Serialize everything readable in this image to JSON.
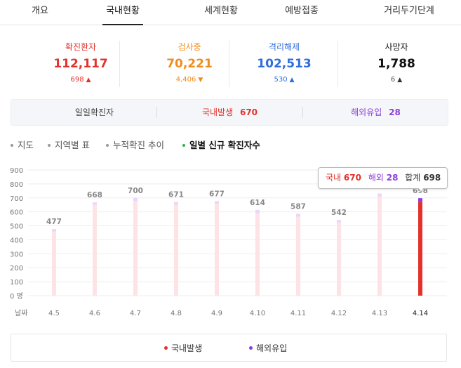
{
  "tabs": [
    "개요",
    "국내현황",
    "세계현황",
    "예방접종",
    "거리두기단계"
  ],
  "active_tab": 1,
  "stats": [
    {
      "label": "확진환자",
      "value": "112,117",
      "change": "698",
      "dir": "up",
      "color": "#e3322b"
    },
    {
      "label": "검사중",
      "value": "70,221",
      "change": "4,406",
      "dir": "down",
      "color": "#f08c1e"
    },
    {
      "label": "격리해제",
      "value": "102,513",
      "change": "530",
      "dir": "up",
      "color": "#2f6ddb"
    },
    {
      "label": "사망자",
      "value": "1,788",
      "change": "6",
      "dir": "up",
      "color": "#111111"
    }
  ],
  "summary": {
    "daily_label": "일일확진자",
    "domestic_label": "국내발생",
    "domestic_value": "670",
    "overseas_label": "해외유입",
    "overseas_value": "28"
  },
  "subtabs": [
    "지도",
    "지역별 표",
    "누적확진 추이",
    "일별 신규 확진자수"
  ],
  "tooltip": {
    "domestic_label": "국내",
    "domestic_value": "670",
    "overseas_label": "해외",
    "overseas_value": "28",
    "total_label": "합계",
    "total_value": "698"
  },
  "colors": {
    "domestic": "#e3322b",
    "overseas": "#8b3fd9",
    "bar_light": "#fde3e6",
    "bar_overseas_light": "#ead6fb"
  },
  "chart_data": {
    "type": "bar",
    "categories": [
      "4.5",
      "4.6",
      "4.7",
      "4.8",
      "4.9",
      "4.10",
      "4.11",
      "4.12",
      "4.13",
      "4.14"
    ],
    "series": [
      {
        "name": "국내발생",
        "values": [
          460,
          650,
          677,
          653,
          657,
          590,
          566,
          525,
          709,
          670
        ]
      },
      {
        "name": "해외유입",
        "values": [
          17,
          18,
          23,
          18,
          20,
          24,
          21,
          17,
          22,
          28
        ]
      }
    ],
    "totals": [
      "477",
      "668",
      "700",
      "671",
      "677",
      "614",
      "587",
      "542",
      "731",
      "698"
    ],
    "yticks": [
      "900",
      "800",
      "700",
      "600",
      "500",
      "400",
      "300",
      "200",
      "100",
      "0 명"
    ],
    "ylim": [
      0,
      900
    ],
    "xlabel": "날짜",
    "highlight_index": 9
  },
  "legend": [
    "국내발생",
    "해외유입"
  ]
}
